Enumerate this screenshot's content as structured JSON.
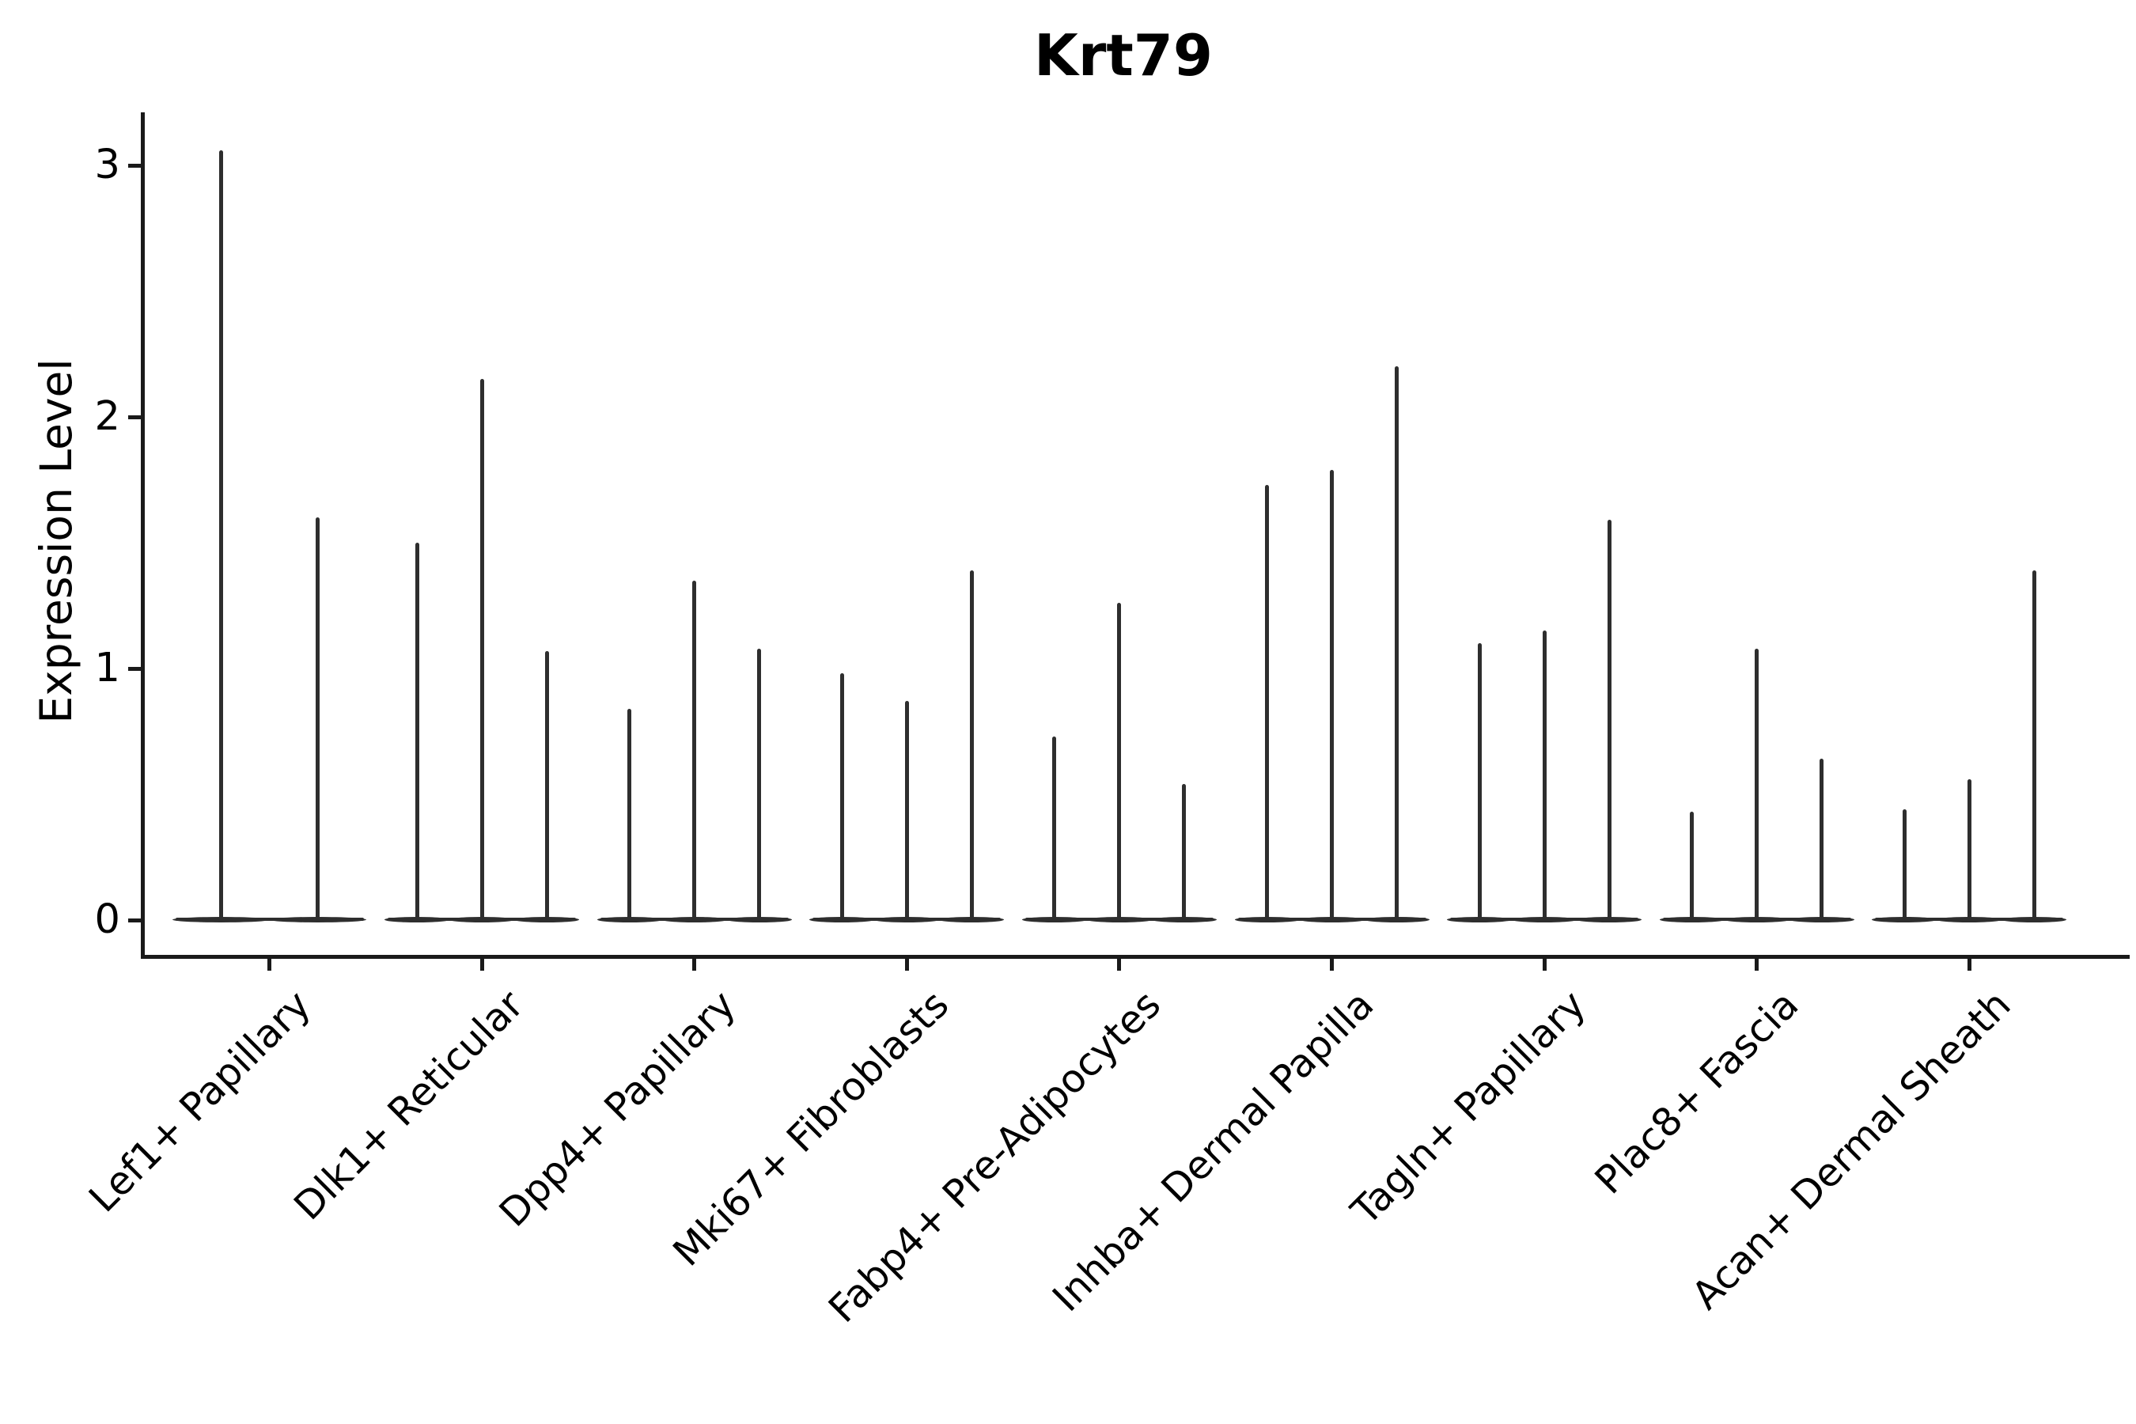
{
  "title": "Krt79",
  "y_axis": {
    "label": "Expression Level",
    "tick_values": [
      0,
      1,
      2,
      3
    ],
    "tick_labels": [
      "0",
      "1",
      "2",
      "3"
    ]
  },
  "chart_data": {
    "type": "violin",
    "title": "Krt79",
    "xlabel": "",
    "ylabel": "Expression Level",
    "ylim": [
      0,
      3.35
    ],
    "yticks": [
      0,
      1,
      2,
      3
    ],
    "grid": false,
    "legend": "none",
    "orientation": "vertical",
    "note": "Each category holds 2-3 extremely thin spike-like violins (sparse single-cell expression); flat baselines at 0",
    "categories": [
      "Lef1+ Papillary",
      "Dlk1+ Reticular",
      "Dpp4+ Papillary",
      "Mki67+ Fibroblasts",
      "Fabp4+ Pre-Adipocytes",
      "Inhba+ Dermal Papilla",
      "Tagln+ Papillary",
      "Plac8+ Fascia",
      "Acan+ Dermal Sheath"
    ],
    "groups": [
      {
        "label": "Lef1+ Papillary",
        "spike_max_values": [
          3.06,
          1.6
        ]
      },
      {
        "label": "Dlk1+ Reticular",
        "spike_max_values": [
          1.5,
          2.15,
          1.07
        ]
      },
      {
        "label": "Dpp4+ Papillary",
        "spike_max_values": [
          0.84,
          1.35,
          1.08
        ]
      },
      {
        "label": "Mki67+ Fibroblasts",
        "spike_max_values": [
          0.98,
          0.87,
          1.39
        ]
      },
      {
        "label": "Fabp4+ Pre-Adipocytes",
        "spike_max_values": [
          0.73,
          1.26,
          0.54
        ]
      },
      {
        "label": "Inhba+ Dermal Papilla",
        "spike_max_values": [
          1.73,
          1.79,
          2.2
        ]
      },
      {
        "label": "Tagln+ Papillary",
        "spike_max_values": [
          1.1,
          1.15,
          1.59
        ]
      },
      {
        "label": "Plac8+ Fascia",
        "spike_max_values": [
          0.43,
          1.08,
          0.64
        ]
      },
      {
        "label": "Acan+ Dermal Sheath",
        "spike_max_values": [
          0.44,
          0.56,
          1.39
        ]
      }
    ],
    "colors": {
      "violin": "#2e2e2e",
      "spine": "#1a1a1a",
      "text": "#000000",
      "background": "#ffffff"
    }
  }
}
